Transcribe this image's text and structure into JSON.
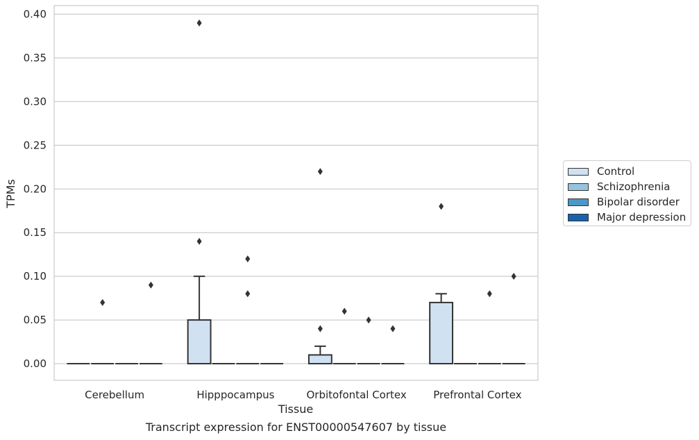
{
  "chart_data": {
    "type": "box",
    "caption": "Transcript expression for ENST00000547607 by tissue",
    "xlabel": "Tissue",
    "ylabel": "TPMs",
    "ylim": [
      -0.019,
      0.41
    ],
    "yticks": [
      0.0,
      0.05,
      0.1,
      0.15,
      0.2,
      0.25,
      0.3,
      0.35,
      0.4
    ],
    "ytick_labels": [
      "0.00",
      "0.05",
      "0.10",
      "0.15",
      "0.20",
      "0.25",
      "0.30",
      "0.35",
      "0.40"
    ],
    "categories": [
      "Cerebellum",
      "Hipppocampus",
      "Orbitofontal Cortex",
      "Prefrontal Cortex"
    ],
    "grid": "horizontal",
    "legend_position": "right",
    "series": [
      {
        "name": "Control",
        "color": "#d0e1f2",
        "boxes": [
          {
            "q1": 0,
            "median": 0,
            "q3": 0,
            "whisker_low": 0,
            "whisker_high": 0,
            "outliers": []
          },
          {
            "q1": 0,
            "median": 0,
            "q3": 0.05,
            "whisker_low": 0,
            "whisker_high": 0.1,
            "outliers": [
              0.39,
              0.14
            ]
          },
          {
            "q1": 0,
            "median": 0,
            "q3": 0.01,
            "whisker_low": 0,
            "whisker_high": 0.02,
            "outliers": [
              0.22,
              0.04
            ]
          },
          {
            "q1": 0,
            "median": 0,
            "q3": 0.07,
            "whisker_low": 0,
            "whisker_high": 0.08,
            "outliers": [
              0.18
            ]
          }
        ]
      },
      {
        "name": "Schizophrenia",
        "color": "#94c4df",
        "boxes": [
          {
            "q1": 0,
            "median": 0,
            "q3": 0,
            "whisker_low": 0,
            "whisker_high": 0,
            "outliers": [
              0.07
            ]
          },
          {
            "q1": 0,
            "median": 0,
            "q3": 0,
            "whisker_low": 0,
            "whisker_high": 0,
            "outliers": []
          },
          {
            "q1": 0,
            "median": 0,
            "q3": 0,
            "whisker_low": 0,
            "whisker_high": 0,
            "outliers": [
              0.06
            ]
          },
          {
            "q1": 0,
            "median": 0,
            "q3": 0,
            "whisker_low": 0,
            "whisker_high": 0,
            "outliers": []
          }
        ]
      },
      {
        "name": "Bipolar disorder",
        "color": "#4a98c9",
        "boxes": [
          {
            "q1": 0,
            "median": 0,
            "q3": 0,
            "whisker_low": 0,
            "whisker_high": 0,
            "outliers": []
          },
          {
            "q1": 0,
            "median": 0,
            "q3": 0,
            "whisker_low": 0,
            "whisker_high": 0,
            "outliers": [
              0.12,
              0.08
            ]
          },
          {
            "q1": 0,
            "median": 0,
            "q3": 0,
            "whisker_low": 0,
            "whisker_high": 0,
            "outliers": [
              0.05
            ]
          },
          {
            "q1": 0,
            "median": 0,
            "q3": 0,
            "whisker_low": 0,
            "whisker_high": 0,
            "outliers": [
              0.08
            ]
          }
        ]
      },
      {
        "name": "Major depression",
        "color": "#1764ab",
        "boxes": [
          {
            "q1": 0,
            "median": 0,
            "q3": 0,
            "whisker_low": 0,
            "whisker_high": 0,
            "outliers": [
              0.09
            ]
          },
          {
            "q1": 0,
            "median": 0,
            "q3": 0,
            "whisker_low": 0,
            "whisker_high": 0,
            "outliers": []
          },
          {
            "q1": 0,
            "median": 0,
            "q3": 0,
            "whisker_low": 0,
            "whisker_high": 0,
            "outliers": [
              0.04
            ]
          },
          {
            "q1": 0,
            "median": 0,
            "q3": 0,
            "whisker_low": 0,
            "whisker_high": 0,
            "outliers": [
              0.1
            ]
          }
        ]
      }
    ]
  }
}
